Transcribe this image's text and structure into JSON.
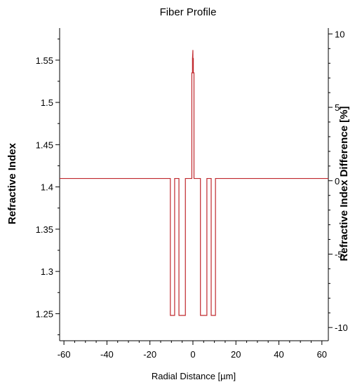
{
  "chart_data": {
    "type": "line",
    "title": "Fiber Profile",
    "xlabel": "Radial Distance [µm]",
    "ylabel": "Refractive Index",
    "y2label": "Refractive Index  Difference [%]",
    "xlim": [
      -62,
      63
    ],
    "ylim": [
      1.218,
      1.588
    ],
    "y2lim": [
      -10.9,
      10.4
    ],
    "x_ticks": [
      -60,
      -40,
      -20,
      0,
      20,
      40,
      60
    ],
    "y_ticks": [
      1.25,
      1.3,
      1.35,
      1.4,
      1.45,
      1.5,
      1.55
    ],
    "y2_ticks": [
      -10,
      -5,
      0,
      5,
      10
    ],
    "grid": false,
    "line_color": "#c0282d",
    "series": [
      {
        "x": [
          -62,
          -10.5,
          -10.5,
          -8.5,
          -8.5,
          -6.5,
          -6.5,
          -3.5,
          -3.5,
          -1.5,
          -1.5,
          -0.5,
          -0.5,
          -0.2,
          -0.2,
          0,
          0,
          0.2,
          0.2,
          0.5,
          0.5,
          1.5,
          1.5,
          3.5,
          3.5,
          6.5,
          6.5,
          8.5,
          8.5,
          10.5,
          10.5,
          63
        ],
        "y": [
          1.41,
          1.41,
          1.248,
          1.248,
          1.41,
          1.41,
          1.248,
          1.248,
          1.41,
          1.41,
          1.41,
          1.41,
          1.535,
          1.535,
          1.552,
          1.562,
          1.552,
          1.552,
          1.535,
          1.535,
          1.41,
          1.41,
          1.41,
          1.41,
          1.248,
          1.248,
          1.41,
          1.41,
          1.248,
          1.248,
          1.41,
          1.41
        ]
      }
    ]
  }
}
